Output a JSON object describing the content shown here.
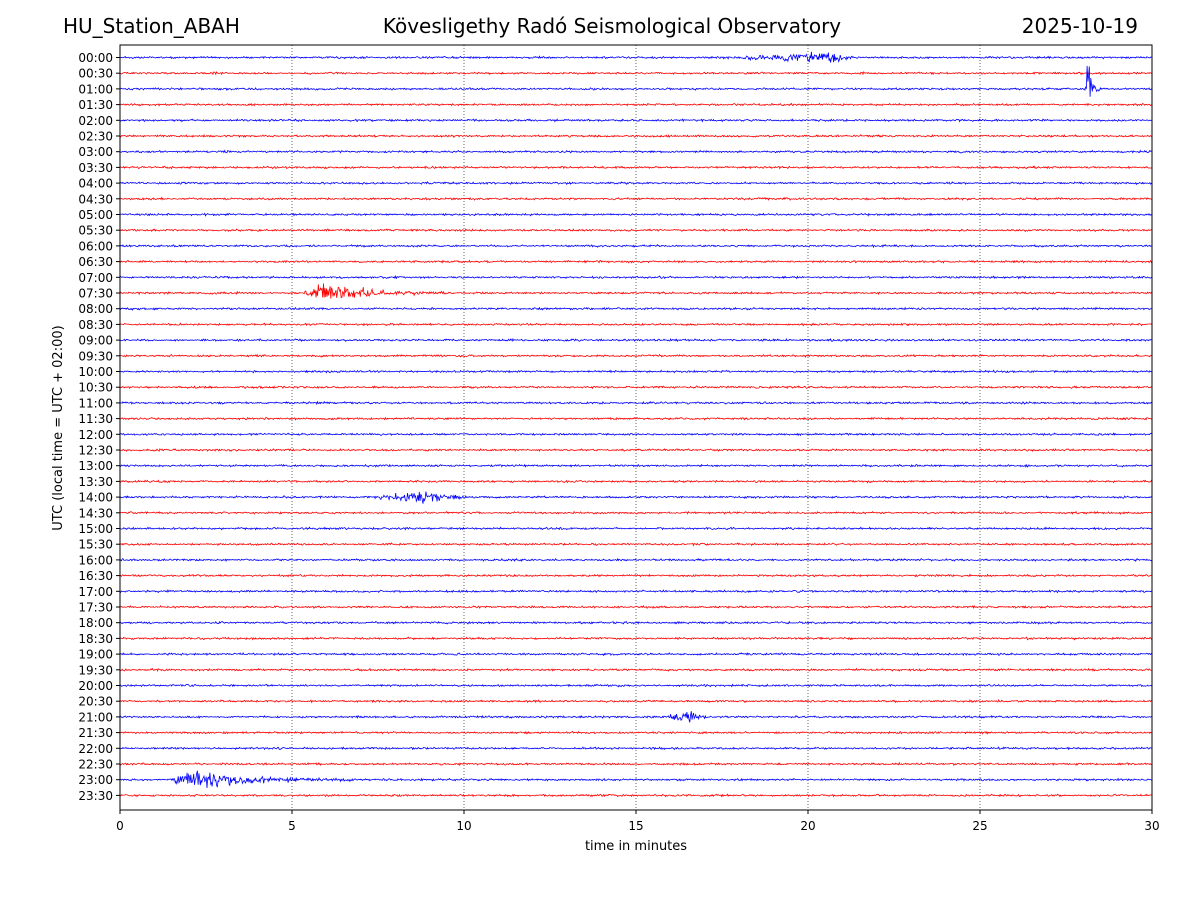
{
  "header": {
    "station": "HU_Station_ABAH",
    "title": "Kövesligethy Radó Seismological Observatory",
    "date": "2025-10-19"
  },
  "chart_data": {
    "type": "line",
    "chart_kind": "helicorder",
    "title": "Kövesligethy Radó Seismological Observatory",
    "xlabel": "time in minutes",
    "ylabel": "UTC (local time = UTC + 02:00)",
    "xlim": [
      0,
      30
    ],
    "x_ticks": [
      "0",
      "5",
      "10",
      "15",
      "20",
      "25",
      "30"
    ],
    "x_tick_values": [
      0,
      5,
      10,
      15,
      20,
      25,
      30
    ],
    "grid": "vertical dotted lines at each x tick",
    "line_colors": [
      "#0000ff",
      "#ff0000"
    ],
    "rows": [
      "00:00",
      "00:30",
      "01:00",
      "01:30",
      "02:00",
      "02:30",
      "03:00",
      "03:30",
      "04:00",
      "04:30",
      "05:00",
      "05:30",
      "06:00",
      "06:30",
      "07:00",
      "07:30",
      "08:00",
      "08:30",
      "09:00",
      "09:30",
      "10:00",
      "10:30",
      "11:00",
      "11:30",
      "12:00",
      "12:30",
      "13:00",
      "13:30",
      "14:00",
      "14:30",
      "15:00",
      "15:30",
      "16:00",
      "16:30",
      "17:00",
      "17:30",
      "18:00",
      "18:30",
      "19:00",
      "19:30",
      "20:00",
      "20:30",
      "21:00",
      "21:30",
      "22:00",
      "22:30",
      "23:00",
      "23:30"
    ],
    "events": [
      {
        "row": "00:00",
        "start_min": 17.5,
        "end_min": 21.5,
        "peak_min": 20.5,
        "amplitude": 0.45
      },
      {
        "row": "01:00",
        "start_min": 28.05,
        "end_min": 28.6,
        "peak_min": 28.15,
        "amplitude": 1.0
      },
      {
        "row": "07:30",
        "start_min": 5.3,
        "end_min": 9.5,
        "peak_min": 5.8,
        "amplitude": 0.65
      },
      {
        "row": "14:00",
        "start_min": 7.0,
        "end_min": 11.0,
        "peak_min": 8.8,
        "amplitude": 0.35
      },
      {
        "row": "21:00",
        "start_min": 15.5,
        "end_min": 17.5,
        "peak_min": 16.5,
        "amplitude": 0.35
      },
      {
        "row": "23:00",
        "start_min": 1.5,
        "end_min": 7.0,
        "peak_min": 1.8,
        "amplitude": 0.7
      }
    ]
  }
}
